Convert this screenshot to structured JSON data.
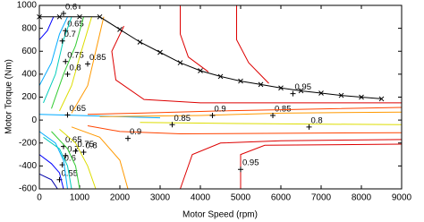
{
  "chart_data": {
    "type": "contour",
    "xlabel": "Motor Speed (rpm)",
    "ylabel": "Motor Torque (Nm)",
    "xlim": [
      0,
      9000
    ],
    "xticks": [
      0,
      1000,
      2000,
      3000,
      4000,
      5000,
      6000,
      7000,
      8000,
      9000
    ],
    "ylim": [
      -600,
      1000
    ],
    "yticks": [
      -600,
      -400,
      -200,
      0,
      200,
      400,
      600,
      800,
      1000
    ],
    "envelope": {
      "color": "#000000",
      "x": [
        0,
        500,
        1000,
        1500,
        2000,
        2500,
        3000,
        3500,
        4000,
        4500,
        5000,
        5500,
        6000,
        6500,
        7000,
        7500,
        8000,
        8500
      ],
      "y": [
        900,
        900,
        900,
        900,
        790,
        680,
        590,
        500,
        430,
        380,
        340,
        310,
        280,
        255,
        235,
        215,
        200,
        185
      ]
    },
    "contours": [
      {
        "level": 0.55,
        "color": "#0000aa",
        "lines": [
          {
            "x": [
              0,
              300,
              450
            ],
            "y": [
              -470,
              -520,
              -600
            ]
          }
        ],
        "labels": [
          [
            500,
            -520
          ]
        ]
      },
      {
        "level": 0.6,
        "color": "#0000ff",
        "lines": [
          {
            "x": [
              0,
              200,
              350
            ],
            "y": [
              700,
              780,
              900
            ]
          },
          {
            "x": [
              0,
              300,
              500,
              600
            ],
            "y": [
              -300,
              -380,
              -460,
              -600
            ]
          }
        ],
        "labels": [
          [
            600,
            930
          ],
          [
            570,
            -390
          ]
        ]
      },
      {
        "level": 0.65,
        "color": "#00aaff",
        "lines": [
          {
            "x": [
              0,
              300,
              500,
              700
            ],
            "y": [
              300,
              500,
              750,
              900
            ]
          },
          {
            "x": [
              0,
              1000,
              3000
            ],
            "y": [
              50,
              40,
              20
            ]
          },
          {
            "x": [
              0,
              400,
              600,
              700
            ],
            "y": [
              -100,
              -200,
              -350,
              -600
            ]
          }
        ],
        "labels": [
          [
            650,
            780
          ],
          [
            700,
            45
          ],
          [
            600,
            -230
          ]
        ]
      },
      {
        "level": 0.7,
        "color": "#00ccbb",
        "lines": [
          {
            "x": [
              100,
              400,
              600,
              800
            ],
            "y": [
              150,
              400,
              700,
              900
            ]
          },
          {
            "x": [
              100,
              500,
              700,
              800
            ],
            "y": [
              -150,
              -250,
              -400,
              -600
            ]
          }
        ],
        "labels": [
          [
            570,
            690
          ],
          [
            650,
            -310
          ]
        ]
      },
      {
        "level": 0.75,
        "color": "#33cc33",
        "lines": [
          {
            "x": [
              300,
              600,
              900,
              1100
            ],
            "y": [
              100,
              400,
              650,
              900
            ]
          },
          {
            "x": [
              300,
              700,
              900,
              1000
            ],
            "y": [
              -100,
              -250,
              -400,
              -600
            ]
          }
        ],
        "labels": [
          [
            650,
            510
          ],
          [
            900,
            -270
          ]
        ]
      },
      {
        "level": 0.8,
        "color": "#dddd00",
        "lines": [
          {
            "x": [
              500,
              800,
              1000,
              1300
            ],
            "y": [
              80,
              300,
              550,
              900
            ]
          },
          {
            "x": [
              2500,
              5000,
              9000
            ],
            "y": [
              -20,
              -30,
              -40
            ]
          },
          {
            "x": [
              500,
              900,
              1200,
              1400
            ],
            "y": [
              -80,
              -200,
              -400,
              -600
            ]
          }
        ],
        "labels": [
          [
            700,
            400
          ],
          [
            6700,
            -60
          ],
          [
            1100,
            -280
          ]
        ]
      },
      {
        "level": 0.85,
        "color": "#ff9900",
        "lines": [
          {
            "x": [
              800,
              1200,
              1400,
              1600
            ],
            "y": [
              60,
              300,
              600,
              900
            ]
          },
          {
            "x": [
              1500,
              4000,
              6000,
              9000
            ],
            "y": [
              30,
              40,
              60,
              70
            ]
          },
          {
            "x": [
              800,
              1500,
              2000,
              2200
            ],
            "y": [
              -60,
              -150,
              -350,
              -600
            ]
          }
        ],
        "labels": [
          [
            1200,
            490
          ],
          [
            3300,
            -40
          ],
          [
            5800,
            40
          ]
        ]
      },
      {
        "level": 0.9,
        "color": "#ff4400",
        "lines": [
          {
            "x": [
              1200,
              2500,
              4500,
              9000
            ],
            "y": [
              50,
              60,
              80,
              110
            ]
          },
          {
            "x": [
              1200,
              2000,
              3500,
              9000
            ],
            "y": [
              -50,
              -100,
              -120,
              -110
            ]
          }
        ],
        "labels": [
          [
            4300,
            40
          ],
          [
            2200,
            -160
          ]
        ]
      },
      {
        "level": 0.95,
        "color": "#dd0000",
        "lines": [
          {
            "x": [
              2100,
              1800,
              1900,
              2600,
              4000,
              6000,
              9000
            ],
            "y": [
              820,
              600,
              350,
              180,
              150,
              150,
              150
            ]
          },
          {
            "x": [
              3500,
              3500,
              3700,
              4200
            ],
            "y": [
              1000,
              750,
              550,
              420
            ]
          },
          {
            "x": [
              4900,
              4900,
              5200,
              5700
            ],
            "y": [
              1000,
              700,
              500,
              320
            ]
          },
          {
            "x": [
              9000,
              6000,
              4500,
              3800,
              3500
            ],
            "y": [
              -170,
              -180,
              -200,
              -300,
              -600
            ]
          },
          {
            "x": [
              5000,
              5000,
              5600,
              9000
            ],
            "y": [
              -600,
              -300,
              -220,
              -210
            ]
          }
        ],
        "labels": [
          [
            6300,
            230
          ],
          [
            5000,
            -430
          ]
        ]
      }
    ]
  }
}
